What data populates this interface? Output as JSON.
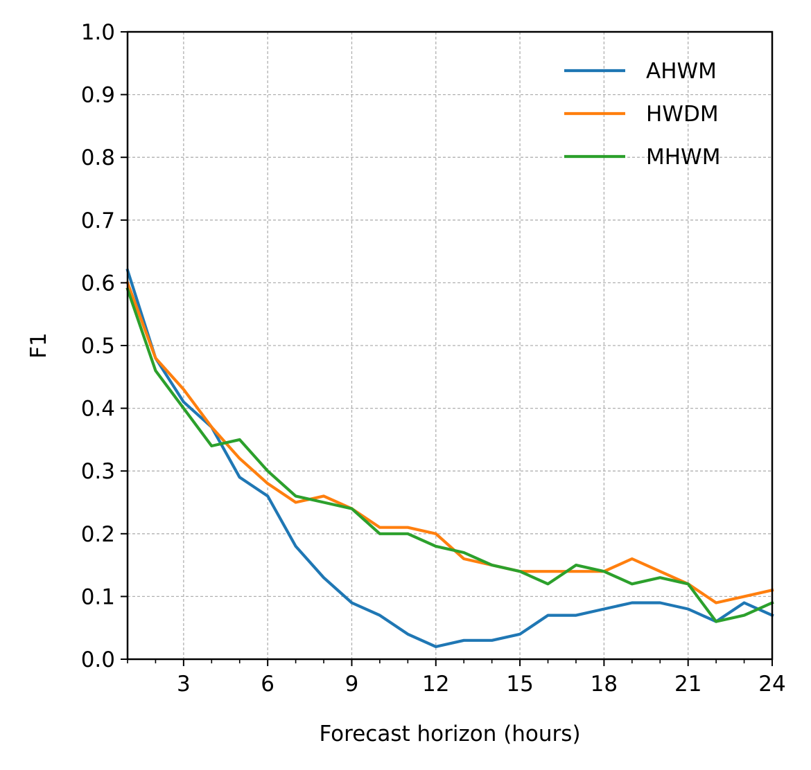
{
  "chart_data": {
    "type": "line",
    "xlabel": "Forecast horizon (hours)",
    "ylabel": "F1",
    "xlim": [
      1,
      24
    ],
    "ylim": [
      0.0,
      1.0
    ],
    "xticks": [
      3,
      6,
      9,
      12,
      15,
      18,
      21,
      24
    ],
    "xtick_labels": [
      "3",
      "6",
      "9",
      "12",
      "15",
      "18",
      "21",
      "24"
    ],
    "x_minor_ticks": [
      1,
      2,
      4,
      5,
      7,
      8,
      10,
      11,
      13,
      14,
      16,
      17,
      19,
      20,
      22,
      23
    ],
    "yticks": [
      0.0,
      0.1,
      0.2,
      0.3,
      0.4,
      0.5,
      0.6,
      0.7,
      0.8,
      0.9,
      1.0
    ],
    "ytick_labels": [
      "0.0",
      "0.1",
      "0.2",
      "0.3",
      "0.4",
      "0.5",
      "0.6",
      "0.7",
      "0.8",
      "0.9",
      "1.0"
    ],
    "grid": true,
    "legend_position": "top-right",
    "x": [
      1,
      2,
      3,
      4,
      5,
      6,
      7,
      8,
      9,
      10,
      11,
      12,
      13,
      14,
      15,
      16,
      17,
      18,
      19,
      20,
      21,
      22,
      23,
      24
    ],
    "series": [
      {
        "name": "AHWM",
        "color": "#1f77b4",
        "values": [
          0.62,
          0.48,
          0.41,
          0.37,
          0.29,
          0.26,
          0.18,
          0.13,
          0.09,
          0.07,
          0.04,
          0.02,
          0.03,
          0.03,
          0.04,
          0.07,
          0.07,
          0.08,
          0.09,
          0.09,
          0.08,
          0.06,
          0.09,
          0.07
        ]
      },
      {
        "name": "HWDM",
        "color": "#ff7f0e",
        "values": [
          0.6,
          0.48,
          0.43,
          0.37,
          0.32,
          0.28,
          0.25,
          0.26,
          0.24,
          0.21,
          0.21,
          0.2,
          0.16,
          0.15,
          0.14,
          0.14,
          0.14,
          0.14,
          0.16,
          0.14,
          0.12,
          0.09,
          0.1,
          0.11
        ]
      },
      {
        "name": "MHWM",
        "color": "#2ca02c",
        "values": [
          0.59,
          0.46,
          0.4,
          0.34,
          0.35,
          0.3,
          0.26,
          0.25,
          0.24,
          0.2,
          0.2,
          0.18,
          0.17,
          0.15,
          0.14,
          0.12,
          0.15,
          0.14,
          0.12,
          0.13,
          0.12,
          0.06,
          0.07,
          0.09
        ]
      }
    ]
  }
}
